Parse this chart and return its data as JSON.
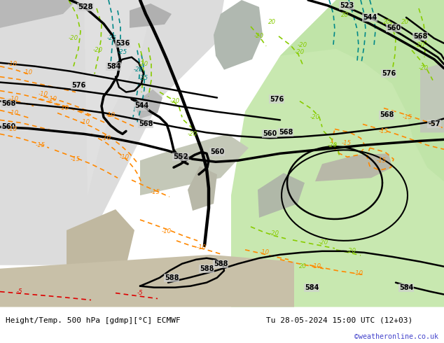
{
  "title_left": "Height/Temp. 500 hPa [gdmp][°C] ECMWF",
  "title_right": "Tu 28-05-2024 15:00 UTC (12+03)",
  "credit": "©weatheronline.co.uk",
  "bg_color": "#d0d0d0",
  "bottom_bar_color": "#e8e8e8",
  "credit_color": "#4444cc",
  "bottom_bar_height": 0.105,
  "geo_color": "#000000",
  "temp_warm_color": "#ff8800",
  "temp_cold_color": "#008888",
  "temp_neutral_color": "#88cc00",
  "temp_red_color": "#dd0000"
}
